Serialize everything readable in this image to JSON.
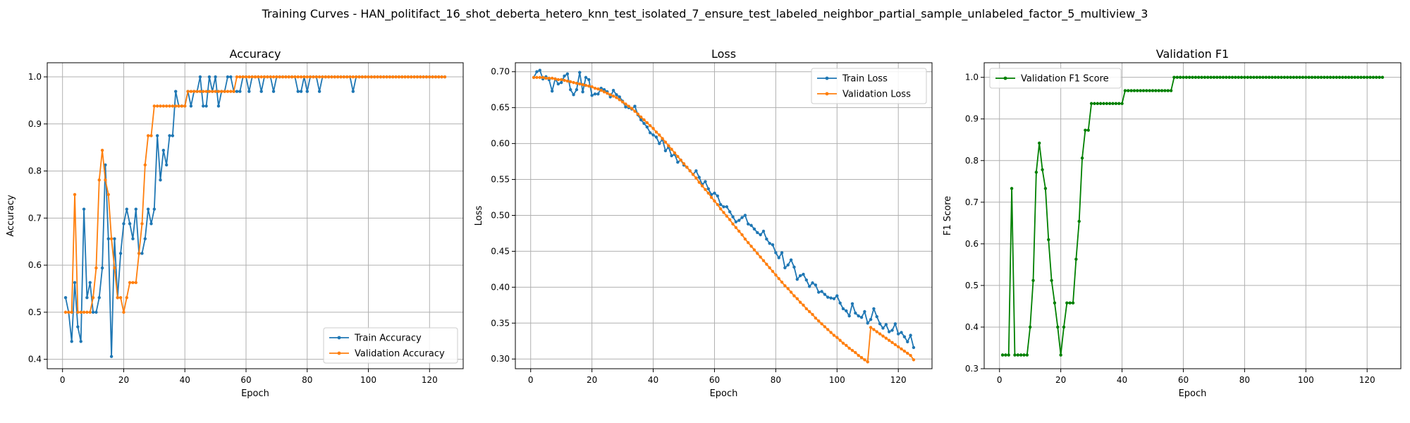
{
  "figure": {
    "title": "Training Curves - HAN_politifact_16_shot_deberta_hetero_knn_test_isolated_7_ensure_test_labeled_neighbor_partial_sample_unlabeled_factor_5_multiview_3"
  },
  "colors": {
    "blue": "#1f77b4",
    "orange": "#ff7f0e",
    "green": "#008000"
  },
  "chart_data": [
    {
      "type": "line",
      "title": "Accuracy",
      "xlabel": "Epoch",
      "ylabel": "Accuracy",
      "xlim": [
        -5,
        131
      ],
      "ylim": [
        0.38,
        1.03
      ],
      "xticks": [
        "0",
        "20",
        "40",
        "60",
        "80",
        "100",
        "120"
      ],
      "yticks": [
        "0.4",
        "0.5",
        "0.6",
        "0.7",
        "0.8",
        "0.9",
        "1.0"
      ],
      "grid": true,
      "legend_position": "lower-right",
      "x": [
        1,
        2,
        3,
        4,
        5,
        6,
        7,
        8,
        9,
        10,
        11,
        12,
        13,
        14,
        15,
        16,
        17,
        18,
        19,
        20,
        21,
        22,
        23,
        24,
        25,
        26,
        27,
        28,
        29,
        30,
        31,
        32,
        33,
        34,
        35,
        36,
        37,
        38,
        39,
        40,
        41,
        42,
        43,
        44,
        45,
        46,
        47,
        48,
        49,
        50,
        51,
        52,
        53,
        54,
        55,
        56,
        57,
        58,
        59,
        60,
        61,
        62,
        63,
        64,
        65,
        66,
        67,
        68,
        69,
        70,
        71,
        72,
        73,
        74,
        75,
        76,
        77,
        78,
        79,
        80,
        81,
        82,
        83,
        84,
        85,
        86,
        87,
        88,
        89,
        90,
        91,
        92,
        93,
        94,
        95,
        96,
        97,
        98,
        99,
        100,
        101,
        102,
        103,
        104,
        105,
        106,
        107,
        108,
        109,
        110,
        111,
        112,
        113,
        114,
        115,
        116,
        117,
        118,
        119,
        120,
        121,
        122,
        123,
        124,
        125
      ],
      "series": [
        {
          "name": "Train Accuracy",
          "color": "blue",
          "values": [
            0.531,
            0.5,
            0.438,
            0.563,
            0.469,
            0.438,
            0.719,
            0.531,
            0.563,
            0.5,
            0.5,
            0.531,
            0.594,
            0.813,
            0.656,
            0.406,
            0.656,
            0.531,
            0.625,
            0.688,
            0.719,
            0.688,
            0.656,
            0.719,
            0.625,
            0.625,
            0.656,
            0.719,
            0.688,
            0.719,
            0.875,
            0.781,
            0.844,
            0.813,
            0.875,
            0.875,
            0.969,
            0.938,
            0.938,
            0.938,
            0.969,
            0.938,
            0.969,
            0.969,
            1.0,
            0.938,
            0.938,
            1.0,
            0.969,
            1.0,
            0.938,
            0.969,
            0.969,
            1.0,
            1.0,
            0.969,
            0.969,
            0.969,
            1.0,
            1.0,
            0.969,
            1.0,
            1.0,
            1.0,
            0.969,
            1.0,
            1.0,
            1.0,
            0.969,
            1.0,
            1.0,
            1.0,
            1.0,
            1.0,
            1.0,
            1.0,
            0.969,
            0.969,
            1.0,
            0.969,
            1.0,
            1.0,
            1.0,
            0.969,
            1.0,
            1.0,
            1.0,
            1.0,
            1.0,
            1.0,
            1.0,
            1.0,
            1.0,
            1.0,
            0.969,
            1.0,
            1.0,
            1.0,
            1.0,
            1.0,
            1.0,
            1.0,
            1.0,
            1.0,
            1.0,
            1.0,
            1.0,
            1.0,
            1.0,
            1.0,
            1.0,
            1.0,
            1.0,
            1.0,
            1.0,
            1.0,
            1.0,
            1.0,
            1.0,
            1.0,
            1.0,
            1.0,
            1.0,
            1.0,
            1.0
          ]
        },
        {
          "name": "Validation Accuracy",
          "color": "orange",
          "values": [
            0.5,
            0.5,
            0.5,
            0.75,
            0.5,
            0.5,
            0.5,
            0.5,
            0.5,
            0.531,
            0.594,
            0.781,
            0.844,
            0.781,
            0.75,
            0.656,
            0.594,
            0.531,
            0.531,
            0.5,
            0.531,
            0.563,
            0.563,
            0.563,
            0.625,
            0.688,
            0.813,
            0.875,
            0.875,
            0.938,
            0.938,
            0.938,
            0.938,
            0.938,
            0.938,
            0.938,
            0.938,
            0.938,
            0.938,
            0.938,
            0.969,
            0.969,
            0.969,
            0.969,
            0.969,
            0.969,
            0.969,
            0.969,
            0.969,
            0.969,
            0.969,
            0.969,
            0.969,
            0.969,
            0.969,
            0.969,
            1.0,
            1.0,
            1.0,
            1.0,
            1.0,
            1.0,
            1.0,
            1.0,
            1.0,
            1.0,
            1.0,
            1.0,
            1.0,
            1.0,
            1.0,
            1.0,
            1.0,
            1.0,
            1.0,
            1.0,
            1.0,
            1.0,
            1.0,
            1.0,
            1.0,
            1.0,
            1.0,
            1.0,
            1.0,
            1.0,
            1.0,
            1.0,
            1.0,
            1.0,
            1.0,
            1.0,
            1.0,
            1.0,
            1.0,
            1.0,
            1.0,
            1.0,
            1.0,
            1.0,
            1.0,
            1.0,
            1.0,
            1.0,
            1.0,
            1.0,
            1.0,
            1.0,
            1.0,
            1.0,
            1.0,
            1.0,
            1.0,
            1.0,
            1.0,
            1.0,
            1.0,
            1.0,
            1.0,
            1.0,
            1.0,
            1.0,
            1.0,
            1.0,
            1.0
          ]
        }
      ]
    },
    {
      "type": "line",
      "title": "Loss",
      "xlabel": "Epoch",
      "ylabel": "Loss",
      "xlim": [
        -5,
        131
      ],
      "ylim": [
        0.2865,
        0.7125
      ],
      "xticks": [
        "0",
        "20",
        "40",
        "60",
        "80",
        "100",
        "120"
      ],
      "yticks": [
        "0.30",
        "0.35",
        "0.40",
        "0.45",
        "0.50",
        "0.55",
        "0.60",
        "0.65",
        "0.70"
      ],
      "grid": true,
      "legend_position": "upper-right",
      "x": [
        1,
        2,
        3,
        4,
        5,
        6,
        7,
        8,
        9,
        10,
        11,
        12,
        13,
        14,
        15,
        16,
        17,
        18,
        19,
        20,
        21,
        22,
        23,
        24,
        25,
        26,
        27,
        28,
        29,
        30,
        31,
        32,
        33,
        34,
        35,
        36,
        37,
        38,
        39,
        40,
        41,
        42,
        43,
        44,
        45,
        46,
        47,
        48,
        49,
        50,
        51,
        52,
        53,
        54,
        55,
        56,
        57,
        58,
        59,
        60,
        61,
        62,
        63,
        64,
        65,
        66,
        67,
        68,
        69,
        70,
        71,
        72,
        73,
        74,
        75,
        76,
        77,
        78,
        79,
        80,
        81,
        82,
        83,
        84,
        85,
        86,
        87,
        88,
        89,
        90,
        91,
        92,
        93,
        94,
        95,
        96,
        97,
        98,
        99,
        100,
        101,
        102,
        103,
        104,
        105,
        106,
        107,
        108,
        109,
        110,
        111,
        112,
        113,
        114,
        115,
        116,
        117,
        118,
        119,
        120,
        121,
        122,
        123,
        124,
        125
      ],
      "series": [
        {
          "name": "Train Loss",
          "color": "blue",
          "values": [
            0.692,
            0.7,
            0.702,
            0.69,
            0.693,
            0.689,
            0.673,
            0.69,
            0.683,
            0.685,
            0.694,
            0.697,
            0.675,
            0.668,
            0.675,
            0.699,
            0.672,
            0.692,
            0.689,
            0.667,
            0.669,
            0.669,
            0.677,
            0.675,
            0.672,
            0.665,
            0.674,
            0.668,
            0.665,
            0.659,
            0.651,
            0.65,
            0.648,
            0.652,
            0.64,
            0.633,
            0.628,
            0.623,
            0.615,
            0.612,
            0.609,
            0.6,
            0.606,
            0.59,
            0.595,
            0.583,
            0.585,
            0.574,
            0.577,
            0.57,
            0.567,
            0.562,
            0.557,
            0.562,
            0.553,
            0.543,
            0.547,
            0.537,
            0.529,
            0.531,
            0.527,
            0.515,
            0.512,
            0.512,
            0.505,
            0.498,
            0.491,
            0.493,
            0.497,
            0.5,
            0.488,
            0.486,
            0.481,
            0.476,
            0.473,
            0.478,
            0.467,
            0.461,
            0.459,
            0.448,
            0.441,
            0.448,
            0.427,
            0.431,
            0.438,
            0.428,
            0.411,
            0.416,
            0.418,
            0.41,
            0.401,
            0.406,
            0.403,
            0.393,
            0.394,
            0.39,
            0.386,
            0.385,
            0.384,
            0.388,
            0.378,
            0.37,
            0.367,
            0.36,
            0.377,
            0.364,
            0.36,
            0.358,
            0.366,
            0.35,
            0.355,
            0.37,
            0.359,
            0.349,
            0.343,
            0.348,
            0.338,
            0.34,
            0.349,
            0.335,
            0.337,
            0.331,
            0.324,
            0.333,
            0.316
          ]
        },
        {
          "name": "Validation Loss",
          "color": "orange",
          "values": [
            0.692,
            0.692,
            0.692,
            0.692,
            0.691,
            0.691,
            0.691,
            0.69,
            0.689,
            0.689,
            0.688,
            0.687,
            0.686,
            0.685,
            0.684,
            0.683,
            0.682,
            0.681,
            0.68,
            0.679,
            0.677,
            0.676,
            0.674,
            0.672,
            0.67,
            0.668,
            0.666,
            0.664,
            0.661,
            0.658,
            0.655,
            0.652,
            0.649,
            0.645,
            0.641,
            0.637,
            0.633,
            0.629,
            0.625,
            0.621,
            0.616,
            0.612,
            0.607,
            0.602,
            0.597,
            0.592,
            0.587,
            0.582,
            0.577,
            0.572,
            0.567,
            0.562,
            0.557,
            0.552,
            0.546,
            0.541,
            0.536,
            0.531,
            0.525,
            0.52,
            0.515,
            0.509,
            0.504,
            0.499,
            0.494,
            0.488,
            0.483,
            0.478,
            0.473,
            0.467,
            0.462,
            0.457,
            0.452,
            0.447,
            0.442,
            0.437,
            0.432,
            0.427,
            0.422,
            0.417,
            0.412,
            0.407,
            0.402,
            0.398,
            0.393,
            0.388,
            0.384,
            0.379,
            0.375,
            0.37,
            0.366,
            0.362,
            0.357,
            0.353,
            0.349,
            0.345,
            0.341,
            0.337,
            0.333,
            0.33,
            0.326,
            0.322,
            0.319,
            0.315,
            0.312,
            0.309,
            0.305,
            0.302,
            0.299,
            0.296,
            0.344,
            0.341,
            0.338,
            0.335,
            0.332,
            0.329,
            0.326,
            0.323,
            0.32,
            0.317,
            0.314,
            0.311,
            0.308,
            0.305,
            0.299
          ]
        }
      ]
    },
    {
      "type": "line",
      "title": "Validation F1",
      "xlabel": "Epoch",
      "ylabel": "F1 Score",
      "xlim": [
        -5,
        131
      ],
      "ylim": [
        0.3,
        1.035
      ],
      "xticks": [
        "0",
        "20",
        "40",
        "60",
        "80",
        "100",
        "120"
      ],
      "yticks": [
        "0.3",
        "0.4",
        "0.5",
        "0.6",
        "0.7",
        "0.8",
        "0.9",
        "1.0"
      ],
      "grid": true,
      "legend_position": "upper-left",
      "x": [
        1,
        2,
        3,
        4,
        5,
        6,
        7,
        8,
        9,
        10,
        11,
        12,
        13,
        14,
        15,
        16,
        17,
        18,
        19,
        20,
        21,
        22,
        23,
        24,
        25,
        26,
        27,
        28,
        29,
        30,
        31,
        32,
        33,
        34,
        35,
        36,
        37,
        38,
        39,
        40,
        41,
        42,
        43,
        44,
        45,
        46,
        47,
        48,
        49,
        50,
        51,
        52,
        53,
        54,
        55,
        56,
        57,
        58,
        59,
        60,
        61,
        62,
        63,
        64,
        65,
        66,
        67,
        68,
        69,
        70,
        71,
        72,
        73,
        74,
        75,
        76,
        77,
        78,
        79,
        80,
        81,
        82,
        83,
        84,
        85,
        86,
        87,
        88,
        89,
        90,
        91,
        92,
        93,
        94,
        95,
        96,
        97,
        98,
        99,
        100,
        101,
        102,
        103,
        104,
        105,
        106,
        107,
        108,
        109,
        110,
        111,
        112,
        113,
        114,
        115,
        116,
        117,
        118,
        119,
        120,
        121,
        122,
        123,
        124,
        125
      ],
      "series": [
        {
          "name": "Validation F1 Score",
          "color": "green",
          "values": [
            0.333,
            0.333,
            0.333,
            0.733,
            0.333,
            0.333,
            0.333,
            0.333,
            0.333,
            0.4,
            0.512,
            0.772,
            0.842,
            0.778,
            0.733,
            0.61,
            0.512,
            0.458,
            0.4,
            0.333,
            0.4,
            0.458,
            0.458,
            0.458,
            0.563,
            0.654,
            0.806,
            0.873,
            0.873,
            0.937,
            0.937,
            0.937,
            0.937,
            0.937,
            0.937,
            0.937,
            0.937,
            0.937,
            0.937,
            0.937,
            0.968,
            0.968,
            0.968,
            0.968,
            0.968,
            0.968,
            0.968,
            0.968,
            0.968,
            0.968,
            0.968,
            0.968,
            0.968,
            0.968,
            0.968,
            0.968,
            1.0,
            1.0,
            1.0,
            1.0,
            1.0,
            1.0,
            1.0,
            1.0,
            1.0,
            1.0,
            1.0,
            1.0,
            1.0,
            1.0,
            1.0,
            1.0,
            1.0,
            1.0,
            1.0,
            1.0,
            1.0,
            1.0,
            1.0,
            1.0,
            1.0,
            1.0,
            1.0,
            1.0,
            1.0,
            1.0,
            1.0,
            1.0,
            1.0,
            1.0,
            1.0,
            1.0,
            1.0,
            1.0,
            1.0,
            1.0,
            1.0,
            1.0,
            1.0,
            1.0,
            1.0,
            1.0,
            1.0,
            1.0,
            1.0,
            1.0,
            1.0,
            1.0,
            1.0,
            1.0,
            1.0,
            1.0,
            1.0,
            1.0,
            1.0,
            1.0,
            1.0,
            1.0,
            1.0,
            1.0,
            1.0,
            1.0,
            1.0,
            1.0,
            1.0
          ]
        }
      ]
    }
  ]
}
